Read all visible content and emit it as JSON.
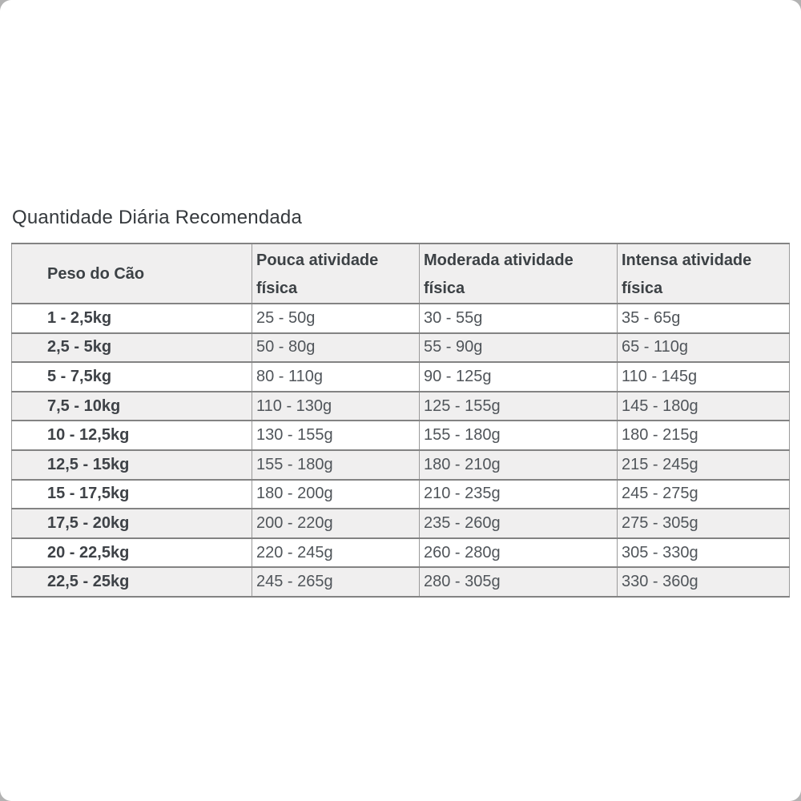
{
  "page": {
    "title": "Quantidade Diária Recomendada"
  },
  "feeding_table": {
    "headers": [
      "Peso do Cão",
      "Pouca atividade física",
      "Moderada atividade física",
      "Intensa atividade física"
    ],
    "rows": [
      [
        "1 - 2,5kg",
        "25 - 50g",
        "30 - 55g",
        "35 - 65g"
      ],
      [
        "2,5 - 5kg",
        "50 - 80g",
        "55 - 90g",
        "65 - 110g"
      ],
      [
        "5 - 7,5kg",
        "80 - 110g",
        "90 - 125g",
        "110 - 145g"
      ],
      [
        "7,5 - 10kg",
        "110 - 130g",
        "125 - 155g",
        "145 - 180g"
      ],
      [
        "10 - 12,5kg",
        "130 - 155g",
        "155 - 180g",
        "180 - 215g"
      ],
      [
        "12,5 - 15kg",
        "155 - 180g",
        "180 - 210g",
        "215 - 245g"
      ],
      [
        "15 - 17,5kg",
        "180 - 200g",
        "210 - 235g",
        "245 - 275g"
      ],
      [
        "17,5 - 20kg",
        "200 - 220g",
        "235 - 260g",
        "275 - 305g"
      ],
      [
        "20 - 22,5kg",
        "220 - 245g",
        "260 - 280g",
        "305 - 330g"
      ],
      [
        "22,5 - 25kg",
        "245 - 265g",
        "280 - 305g",
        "330 - 360g"
      ]
    ],
    "colors": {
      "header_bg": "#f0efef",
      "stripe_bg": "#f0efef",
      "border_horizontal": "#838383",
      "border_vertical": "#9a9a9a",
      "text": "#50555a",
      "bold_text": "#3e4247",
      "title_text": "#35393d",
      "corner_gray": "#b3b3b3"
    }
  }
}
